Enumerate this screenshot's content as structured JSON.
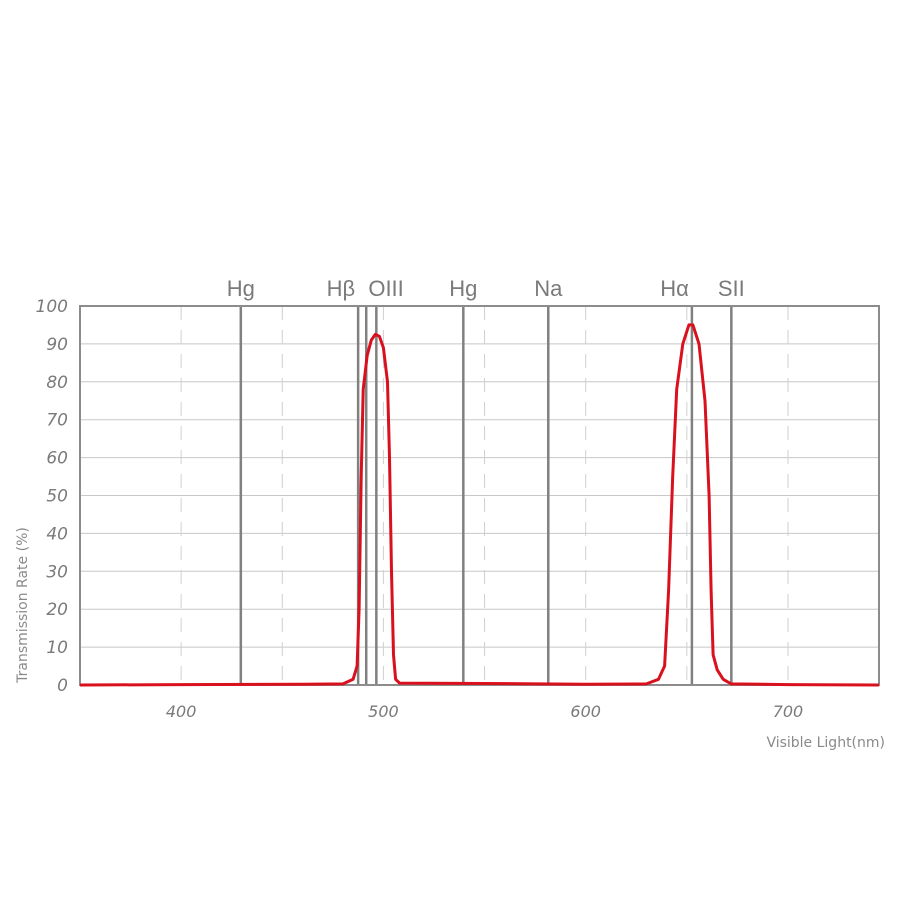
{
  "chart_data": {
    "type": "line",
    "xlabel": "Visible Light(nm)",
    "ylabel": "Transmission Rate (%)",
    "xlim": [
      350,
      745
    ],
    "ylim": [
      0,
      100
    ],
    "x_ticks": [
      400,
      500,
      600,
      700
    ],
    "y_ticks": [
      0,
      10,
      20,
      30,
      40,
      50,
      60,
      70,
      80,
      90,
      100
    ],
    "grid": true,
    "line_color": "#d9101e",
    "reference_line_color": "#808080",
    "reference_lines": [
      {
        "label": "Hg",
        "x": 429.5
      },
      {
        "label": "Hβ",
        "x": 487.5
      },
      {
        "label": "",
        "x": 491.5
      },
      {
        "label": "OIII",
        "x": 496.5
      },
      {
        "label": "Hg",
        "x": 539.5
      },
      {
        "label": "Na",
        "x": 581.5
      },
      {
        "label": "Hα",
        "x": 652.5
      },
      {
        "label": "SII",
        "x": 672
      }
    ],
    "series": [
      {
        "values": [
          [
            350,
            0
          ],
          [
            400,
            0.1
          ],
          [
            460,
            0.2
          ],
          [
            480,
            0.3
          ],
          [
            485,
            1.5
          ],
          [
            487,
            5
          ],
          [
            488,
            20
          ],
          [
            489,
            55
          ],
          [
            490,
            78
          ],
          [
            492,
            87
          ],
          [
            494,
            91
          ],
          [
            496,
            92.5
          ],
          [
            498,
            92
          ],
          [
            500,
            89
          ],
          [
            502,
            80
          ],
          [
            503,
            60
          ],
          [
            504,
            30
          ],
          [
            505,
            8
          ],
          [
            506,
            1.5
          ],
          [
            508,
            0.5
          ],
          [
            550,
            0.4
          ],
          [
            600,
            0.2
          ],
          [
            630,
            0.3
          ],
          [
            636,
            1.5
          ],
          [
            639,
            5
          ],
          [
            641,
            25
          ],
          [
            643,
            55
          ],
          [
            645,
            78
          ],
          [
            648,
            90
          ],
          [
            651,
            95
          ],
          [
            653,
            95
          ],
          [
            656,
            90
          ],
          [
            659,
            75
          ],
          [
            661,
            50
          ],
          [
            662,
            25
          ],
          [
            663,
            8
          ],
          [
            665,
            4
          ],
          [
            668,
            1.5
          ],
          [
            672,
            0.3
          ],
          [
            700,
            0.1
          ],
          [
            745,
            0
          ]
        ]
      }
    ]
  }
}
